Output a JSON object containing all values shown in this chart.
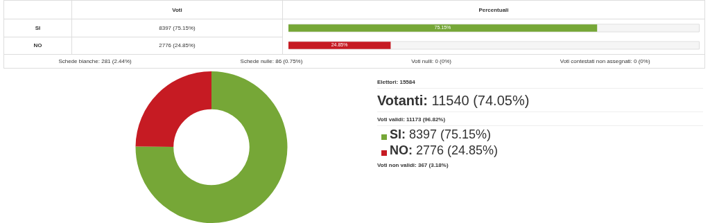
{
  "chart_data": [
    {
      "type": "bar",
      "orientation": "horizontal",
      "title": "Percentuali",
      "categories": [
        "SI",
        "NO"
      ],
      "values": [
        75.15,
        24.85
      ],
      "colors": [
        "#76a737",
        "#c61b23"
      ],
      "xlim": [
        0,
        100
      ],
      "value_labels": [
        "75.15%",
        "24.85%"
      ],
      "tick_labels": "y",
      "annotations": [
        "Voti",
        "8397  (75.15%)",
        "2776  (24.85%)",
        "Schede bianche: 281 (2.44%)",
        "Schede nulle: 86 (0.75%)",
        "Voti nulli: 0 (0%)",
        "Voti contestati non assegnati: 0 (0%)"
      ]
    },
    {
      "type": "donut",
      "categories": [
        "SI: 8397 (75.15%)",
        "NO: 2776 (24.85%)"
      ],
      "values": [
        75.15,
        24.85
      ],
      "colors": [
        "#76a737",
        "#c61b23"
      ],
      "legend": "right",
      "annotations": [
        "Elettori: 15584",
        "Votanti: 11540 (74.05%)",
        "Voti validi: 11173 (96.82%)",
        "Voti non validi: 367 (3.18%)"
      ]
    }
  ]
}
